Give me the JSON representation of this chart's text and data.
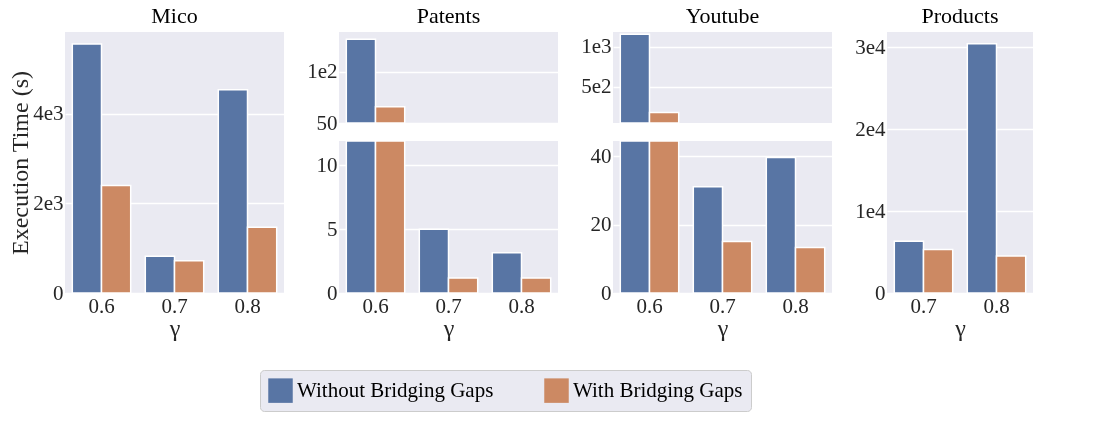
{
  "chart_data": [
    {
      "type": "bar",
      "title": "Mico",
      "xlabel": "γ",
      "ylabel": "Execution Time (s)",
      "categories": [
        "0.6",
        "0.7",
        "0.8"
      ],
      "series": [
        {
          "name": "Without Bridging Gaps",
          "color": "#5875a4",
          "values": [
            5560,
            820,
            4540
          ]
        },
        {
          "name": "With Bridging Gaps",
          "color": "#cc8963",
          "values": [
            2400,
            720,
            1470
          ]
        }
      ],
      "ylim": [
        0,
        5830
      ],
      "yticks": [
        0,
        {
          "value": 2000,
          "label": "2e3"
        },
        {
          "value": 4000,
          "label": "4e3"
        }
      ],
      "grid": "y",
      "legend": "bottom"
    },
    {
      "type": "bar",
      "title": "Patents",
      "categories": [
        "0.6",
        "0.7",
        "0.8"
      ],
      "series": [
        {
          "name": "Without Bridging Gaps",
          "color": "#5875a4",
          "values": [
            132,
            null,
            null
          ]
        },
        {
          "name": "With Bridging Gaps",
          "color": "#cc8963",
          "values": [
            66,
            null,
            null
          ]
        }
      ],
      "ylim": [
        50,
        139
      ],
      "yticks": [
        50,
        {
          "value": 100,
          "label": "1e2"
        }
      ],
      "grid": "y",
      "tick_labels": "y"
    },
    {
      "type": "bar",
      "xlabel": "γ",
      "categories": [
        "0.6",
        "0.7",
        "0.8"
      ],
      "series": [
        {
          "name": "Without Bridging Gaps",
          "color": "#5875a4",
          "values": [
            11.9,
            5.0,
            3.15
          ]
        },
        {
          "name": "With Bridging Gaps",
          "color": "#cc8963",
          "values": [
            11.9,
            1.17,
            1.17
          ]
        }
      ],
      "ylim": [
        0,
        11.9
      ],
      "yticks": [
        0,
        5,
        10
      ],
      "grid": "y"
    },
    {
      "type": "bar",
      "title": "Youtube",
      "categories": [
        "0.6",
        "0.7",
        "0.8"
      ],
      "series": [
        {
          "name": "Without Bridging Gaps",
          "color": "#5875a4",
          "values": [
            1160,
            null,
            null
          ]
        },
        {
          "name": "With Bridging Gaps",
          "color": "#cc8963",
          "values": [
            180,
            null,
            null
          ]
        }
      ],
      "ylim": [
        50,
        1187
      ],
      "yticks": [
        {
          "value": 500,
          "label": "5e2"
        },
        {
          "value": 1000,
          "label": "1e3"
        }
      ],
      "grid": "y",
      "tick_labels": "y"
    },
    {
      "type": "bar",
      "xlabel": "γ",
      "categories": [
        "0.6",
        "0.7",
        "0.8"
      ],
      "series": [
        {
          "name": "Without Bridging Gaps",
          "color": "#5875a4",
          "values": [
            44.5,
            31.1,
            39.7
          ]
        },
        {
          "name": "With Bridging Gaps",
          "color": "#cc8963",
          "values": [
            44.5,
            15.1,
            13.3
          ]
        }
      ],
      "ylim": [
        0,
        44.5
      ],
      "yticks": [
        0,
        20,
        40
      ],
      "grid": "y"
    },
    {
      "type": "bar",
      "title": "Products",
      "xlabel": "γ",
      "categories": [
        "0.7",
        "0.8"
      ],
      "series": [
        {
          "name": "Without Bridging Gaps",
          "color": "#5875a4",
          "values": [
            6300,
            30400
          ]
        },
        {
          "name": "With Bridging Gaps",
          "color": "#cc8963",
          "values": [
            5300,
            4500
          ]
        }
      ],
      "ylim": [
        0,
        31830
      ],
      "yticks": [
        0,
        {
          "value": 10000,
          "label": "1e4"
        },
        {
          "value": 20000,
          "label": "2e4"
        },
        {
          "value": 30000,
          "label": "3e4"
        }
      ],
      "grid": "y"
    }
  ]
}
